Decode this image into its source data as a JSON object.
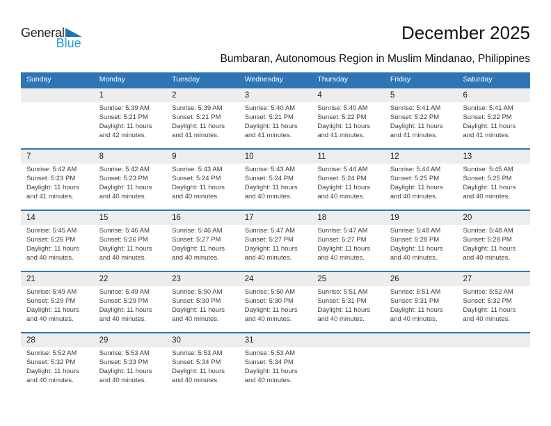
{
  "logo": {
    "general": "General",
    "blue": "Blue"
  },
  "header": {
    "title": "December 2025",
    "location": "Bumbaran, Autonomous Region in Muslim Mindanao, Philippines"
  },
  "colors": {
    "header_blue": "#2E75B5",
    "band_gray": "#EDEDED",
    "logo_triangle": "#1B74BB",
    "logo_blue": "#209BD8"
  },
  "calendar": {
    "weekdays": [
      "Sunday",
      "Monday",
      "Tuesday",
      "Wednesday",
      "Thursday",
      "Friday",
      "Saturday"
    ],
    "weeks": [
      [
        null,
        {
          "day": "1",
          "sunrise": "Sunrise: 5:39 AM",
          "sunset": "Sunset: 5:21 PM",
          "daylight": "Daylight: 11 hours and 42 minutes."
        },
        {
          "day": "2",
          "sunrise": "Sunrise: 5:39 AM",
          "sunset": "Sunset: 5:21 PM",
          "daylight": "Daylight: 11 hours and 41 minutes."
        },
        {
          "day": "3",
          "sunrise": "Sunrise: 5:40 AM",
          "sunset": "Sunset: 5:21 PM",
          "daylight": "Daylight: 11 hours and 41 minutes."
        },
        {
          "day": "4",
          "sunrise": "Sunrise: 5:40 AM",
          "sunset": "Sunset: 5:22 PM",
          "daylight": "Daylight: 11 hours and 41 minutes."
        },
        {
          "day": "5",
          "sunrise": "Sunrise: 5:41 AM",
          "sunset": "Sunset: 5:22 PM",
          "daylight": "Daylight: 11 hours and 41 minutes."
        },
        {
          "day": "6",
          "sunrise": "Sunrise: 5:41 AM",
          "sunset": "Sunset: 5:22 PM",
          "daylight": "Daylight: 11 hours and 41 minutes."
        }
      ],
      [
        {
          "day": "7",
          "sunrise": "Sunrise: 5:42 AM",
          "sunset": "Sunset: 5:23 PM",
          "daylight": "Daylight: 11 hours and 41 minutes."
        },
        {
          "day": "8",
          "sunrise": "Sunrise: 5:42 AM",
          "sunset": "Sunset: 5:23 PM",
          "daylight": "Daylight: 11 hours and 40 minutes."
        },
        {
          "day": "9",
          "sunrise": "Sunrise: 5:43 AM",
          "sunset": "Sunset: 5:24 PM",
          "daylight": "Daylight: 11 hours and 40 minutes."
        },
        {
          "day": "10",
          "sunrise": "Sunrise: 5:43 AM",
          "sunset": "Sunset: 5:24 PM",
          "daylight": "Daylight: 11 hours and 40 minutes."
        },
        {
          "day": "11",
          "sunrise": "Sunrise: 5:44 AM",
          "sunset": "Sunset: 5:24 PM",
          "daylight": "Daylight: 11 hours and 40 minutes."
        },
        {
          "day": "12",
          "sunrise": "Sunrise: 5:44 AM",
          "sunset": "Sunset: 5:25 PM",
          "daylight": "Daylight: 11 hours and 40 minutes."
        },
        {
          "day": "13",
          "sunrise": "Sunrise: 5:45 AM",
          "sunset": "Sunset: 5:25 PM",
          "daylight": "Daylight: 11 hours and 40 minutes."
        }
      ],
      [
        {
          "day": "14",
          "sunrise": "Sunrise: 5:45 AM",
          "sunset": "Sunset: 5:26 PM",
          "daylight": "Daylight: 11 hours and 40 minutes."
        },
        {
          "day": "15",
          "sunrise": "Sunrise: 5:46 AM",
          "sunset": "Sunset: 5:26 PM",
          "daylight": "Daylight: 11 hours and 40 minutes."
        },
        {
          "day": "16",
          "sunrise": "Sunrise: 5:46 AM",
          "sunset": "Sunset: 5:27 PM",
          "daylight": "Daylight: 11 hours and 40 minutes."
        },
        {
          "day": "17",
          "sunrise": "Sunrise: 5:47 AM",
          "sunset": "Sunset: 5:27 PM",
          "daylight": "Daylight: 11 hours and 40 minutes."
        },
        {
          "day": "18",
          "sunrise": "Sunrise: 5:47 AM",
          "sunset": "Sunset: 5:27 PM",
          "daylight": "Daylight: 11 hours and 40 minutes."
        },
        {
          "day": "19",
          "sunrise": "Sunrise: 5:48 AM",
          "sunset": "Sunset: 5:28 PM",
          "daylight": "Daylight: 11 hours and 40 minutes."
        },
        {
          "day": "20",
          "sunrise": "Sunrise: 5:48 AM",
          "sunset": "Sunset: 5:28 PM",
          "daylight": "Daylight: 11 hours and 40 minutes."
        }
      ],
      [
        {
          "day": "21",
          "sunrise": "Sunrise: 5:49 AM",
          "sunset": "Sunset: 5:29 PM",
          "daylight": "Daylight: 11 hours and 40 minutes."
        },
        {
          "day": "22",
          "sunrise": "Sunrise: 5:49 AM",
          "sunset": "Sunset: 5:29 PM",
          "daylight": "Daylight: 11 hours and 40 minutes."
        },
        {
          "day": "23",
          "sunrise": "Sunrise: 5:50 AM",
          "sunset": "Sunset: 5:30 PM",
          "daylight": "Daylight: 11 hours and 40 minutes."
        },
        {
          "day": "24",
          "sunrise": "Sunrise: 5:50 AM",
          "sunset": "Sunset: 5:30 PM",
          "daylight": "Daylight: 11 hours and 40 minutes."
        },
        {
          "day": "25",
          "sunrise": "Sunrise: 5:51 AM",
          "sunset": "Sunset: 5:31 PM",
          "daylight": "Daylight: 11 hours and 40 minutes."
        },
        {
          "day": "26",
          "sunrise": "Sunrise: 5:51 AM",
          "sunset": "Sunset: 5:31 PM",
          "daylight": "Daylight: 11 hours and 40 minutes."
        },
        {
          "day": "27",
          "sunrise": "Sunrise: 5:52 AM",
          "sunset": "Sunset: 5:32 PM",
          "daylight": "Daylight: 11 hours and 40 minutes."
        }
      ],
      [
        {
          "day": "28",
          "sunrise": "Sunrise: 5:52 AM",
          "sunset": "Sunset: 5:32 PM",
          "daylight": "Daylight: 11 hours and 40 minutes."
        },
        {
          "day": "29",
          "sunrise": "Sunrise: 5:53 AM",
          "sunset": "Sunset: 5:33 PM",
          "daylight": "Daylight: 11 hours and 40 minutes."
        },
        {
          "day": "30",
          "sunrise": "Sunrise: 5:53 AM",
          "sunset": "Sunset: 5:34 PM",
          "daylight": "Daylight: 11 hours and 40 minutes."
        },
        {
          "day": "31",
          "sunrise": "Sunrise: 5:53 AM",
          "sunset": "Sunset: 5:34 PM",
          "daylight": "Daylight: 11 hours and 40 minutes."
        },
        null,
        null,
        null
      ]
    ]
  }
}
